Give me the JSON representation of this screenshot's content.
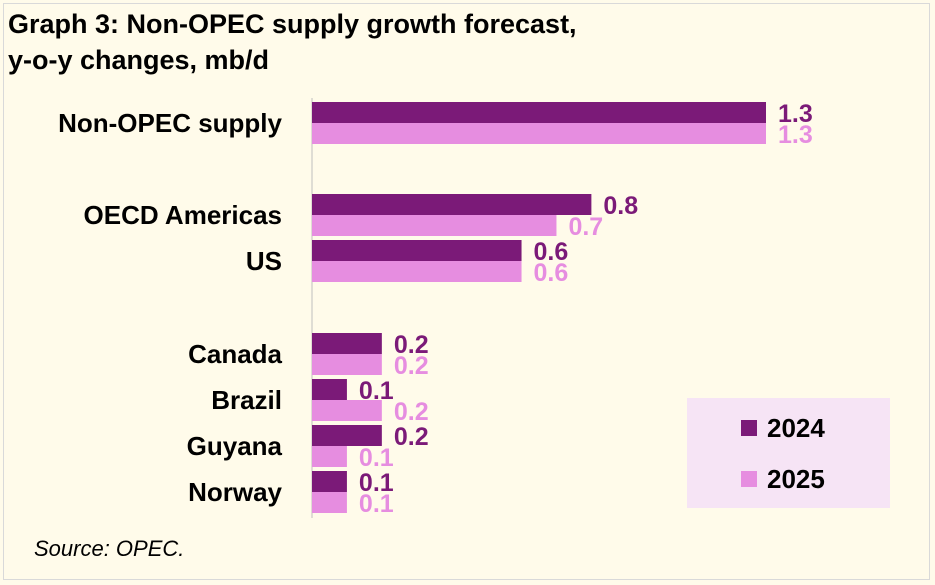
{
  "title_line1": "Graph 3: Non-OPEC supply growth forecast,",
  "title_line2": "y-o-y changes, mb/d",
  "source": "Source: OPEC.",
  "colors": {
    "series_2024": "#7b1a78",
    "series_2025": "#e68de0",
    "legend_bg": "#f6e4f5",
    "axis": "#bfbfbf"
  },
  "chart_data": {
    "type": "bar",
    "orientation": "horizontal",
    "categories": [
      "Non-OPEC supply",
      "OECD Americas",
      "US",
      "Canada",
      "Brazil",
      "Guyana",
      "Norway"
    ],
    "series": [
      {
        "name": "2024",
        "values": [
          1.3,
          0.8,
          0.6,
          0.2,
          0.1,
          0.2,
          0.1
        ]
      },
      {
        "name": "2025",
        "values": [
          1.3,
          0.7,
          0.6,
          0.2,
          0.2,
          0.1,
          0.1
        ]
      }
    ],
    "xlim": [
      0,
      1.3
    ],
    "grid": false,
    "legend": "bottom-right"
  }
}
